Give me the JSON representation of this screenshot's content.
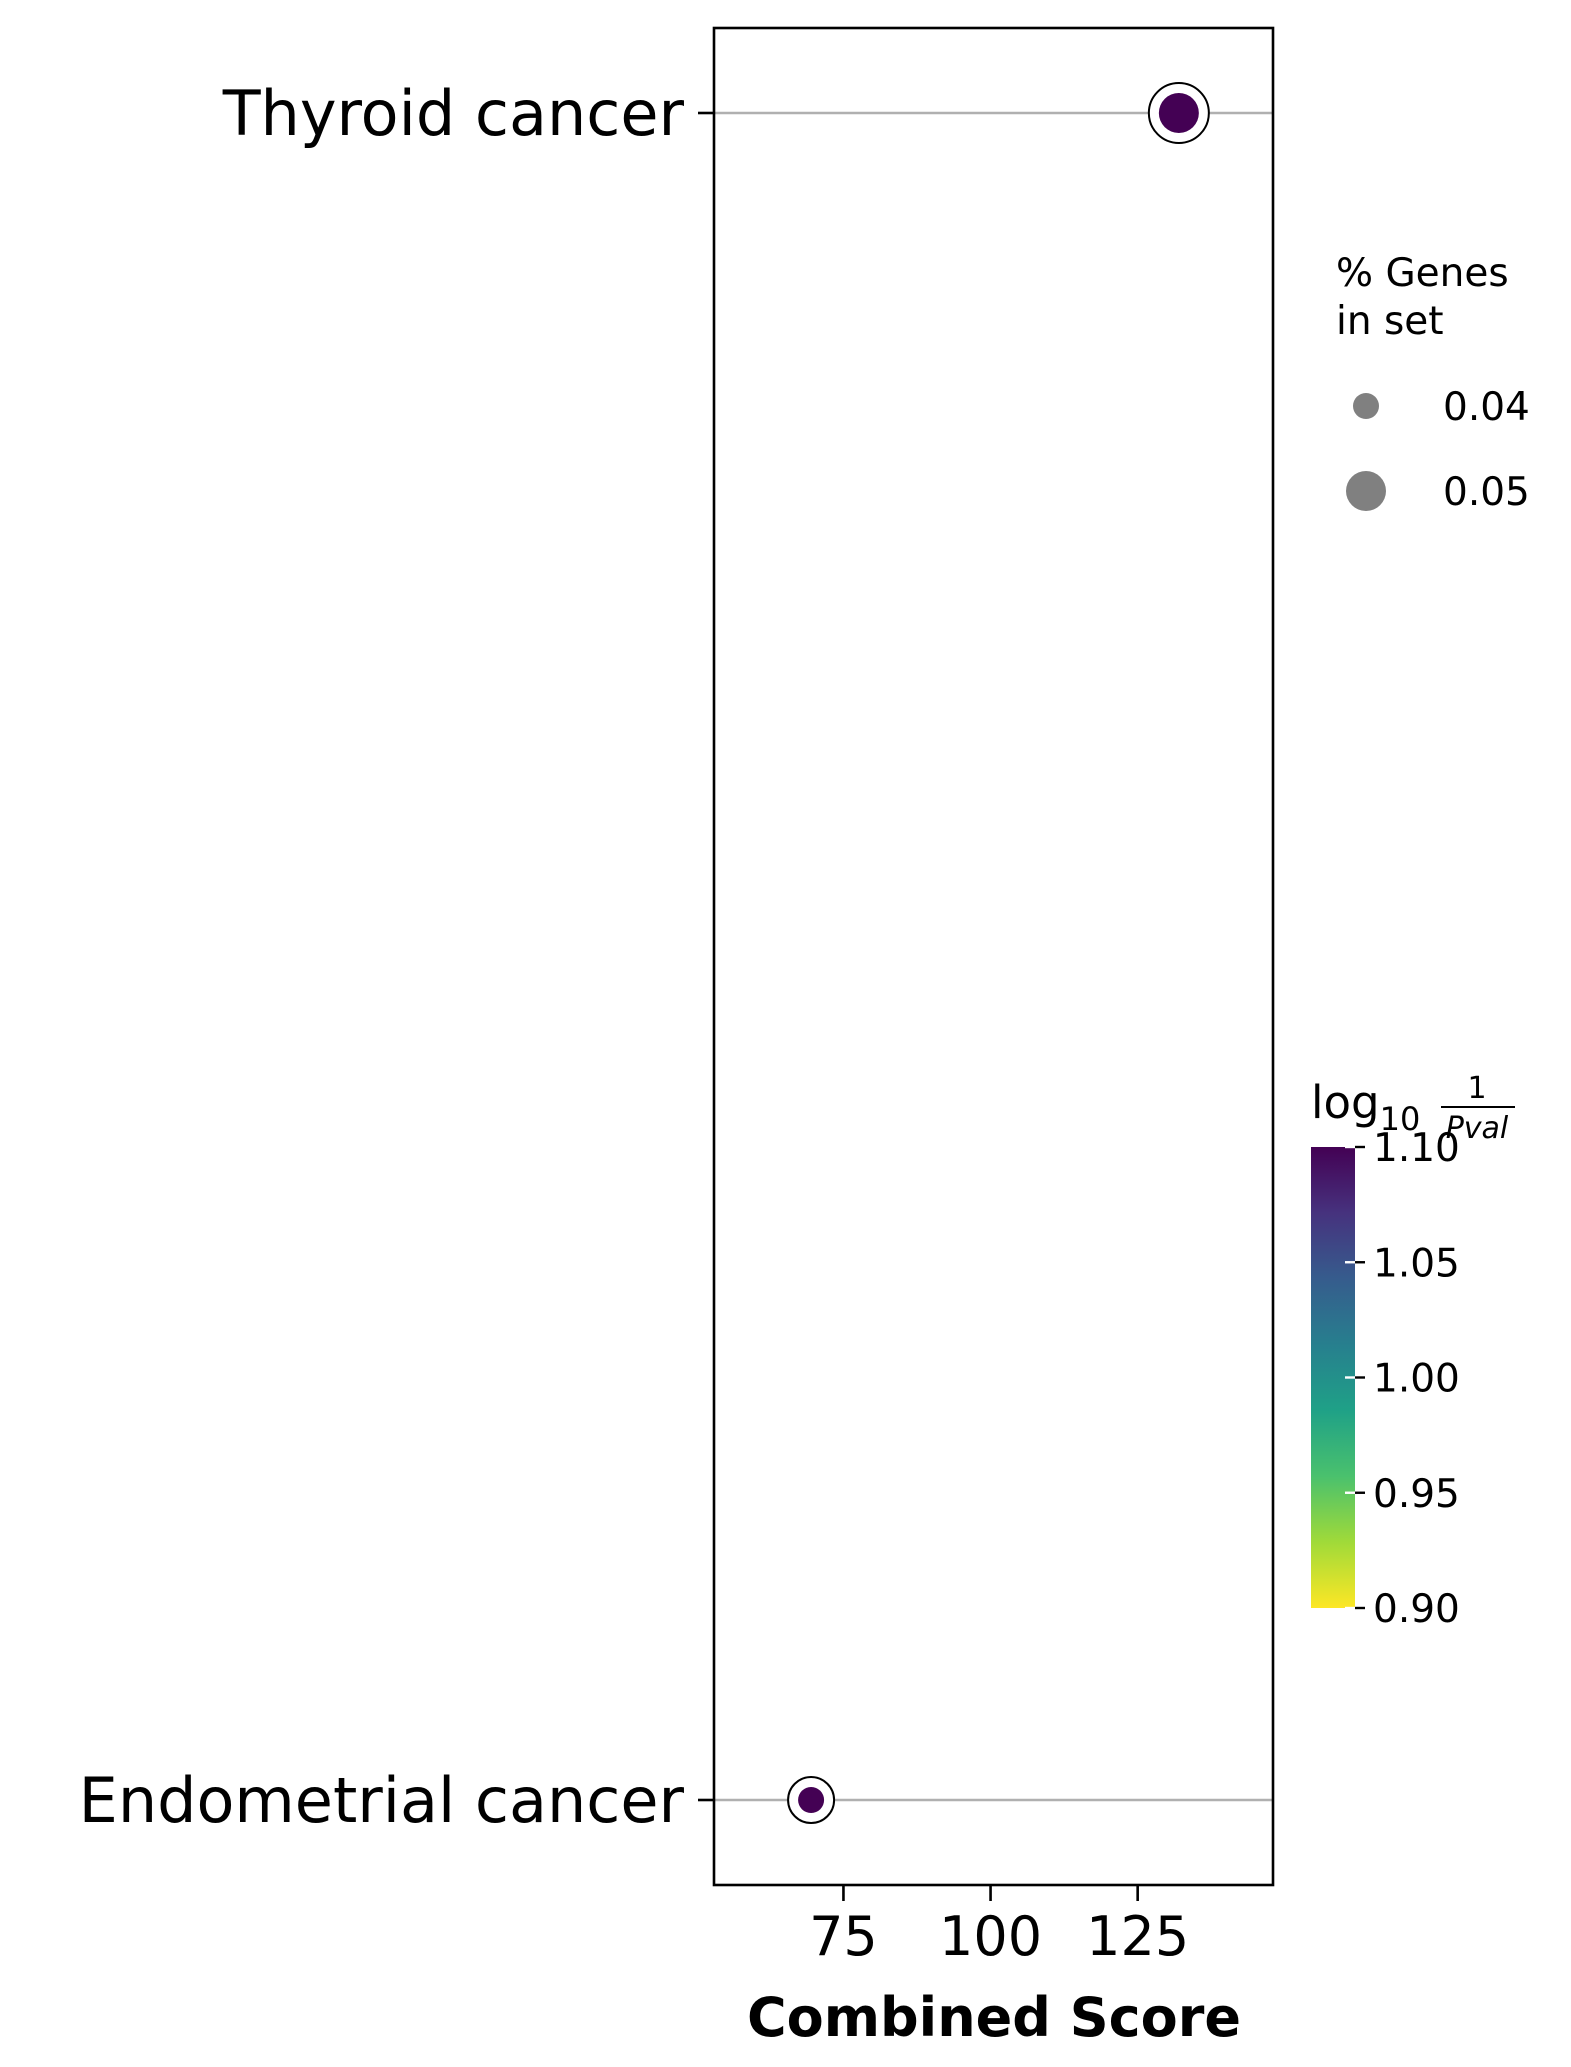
{
  "chart_data": {
    "type": "scatter",
    "xlabel": "Combined Score",
    "ylabel": "",
    "xlim": [
      53,
      148
    ],
    "xticks": [
      75,
      100,
      125
    ],
    "categories": [
      "Thyroid cancer",
      "Endometrial cancer"
    ],
    "grid": "horizontal lines at each category",
    "points": [
      {
        "term": "Thyroid cancer",
        "combined_score": 132.0,
        "pct_genes_in_set": 0.05,
        "log10_inv_pval": 1.1
      },
      {
        "term": "Endometrial cancer",
        "combined_score": 69.5,
        "pct_genes_in_set": 0.04,
        "log10_inv_pval": 1.1
      }
    ],
    "size_legend": {
      "title_lines": [
        "% Genes",
        "in set"
      ],
      "entries": [
        {
          "label": "0.04",
          "value": 0.04
        },
        {
          "label": "0.05",
          "value": 0.05
        }
      ],
      "placement": "right"
    },
    "colorbar": {
      "title_main": "log",
      "title_sub": "10",
      "title_frac_num": "1",
      "title_frac_den": "Pval",
      "colormap": "viridis",
      "range": [
        0.9,
        1.1
      ],
      "ticks": [
        {
          "label": "1.10",
          "value": 1.1
        },
        {
          "label": "1.05",
          "value": 1.05
        },
        {
          "label": "1.00",
          "value": 1.0
        },
        {
          "label": "0.95",
          "value": 0.95
        },
        {
          "label": "0.90",
          "value": 0.9
        }
      ],
      "placement": "right"
    },
    "colors": {
      "grid": "#b0b0b0",
      "size_legend_marker": "#808080",
      "viridis_stops": [
        "#fde725",
        "#a0da39",
        "#4ac16d",
        "#1fa187",
        "#277f8e",
        "#365c8d",
        "#46327e",
        "#440154"
      ]
    }
  }
}
